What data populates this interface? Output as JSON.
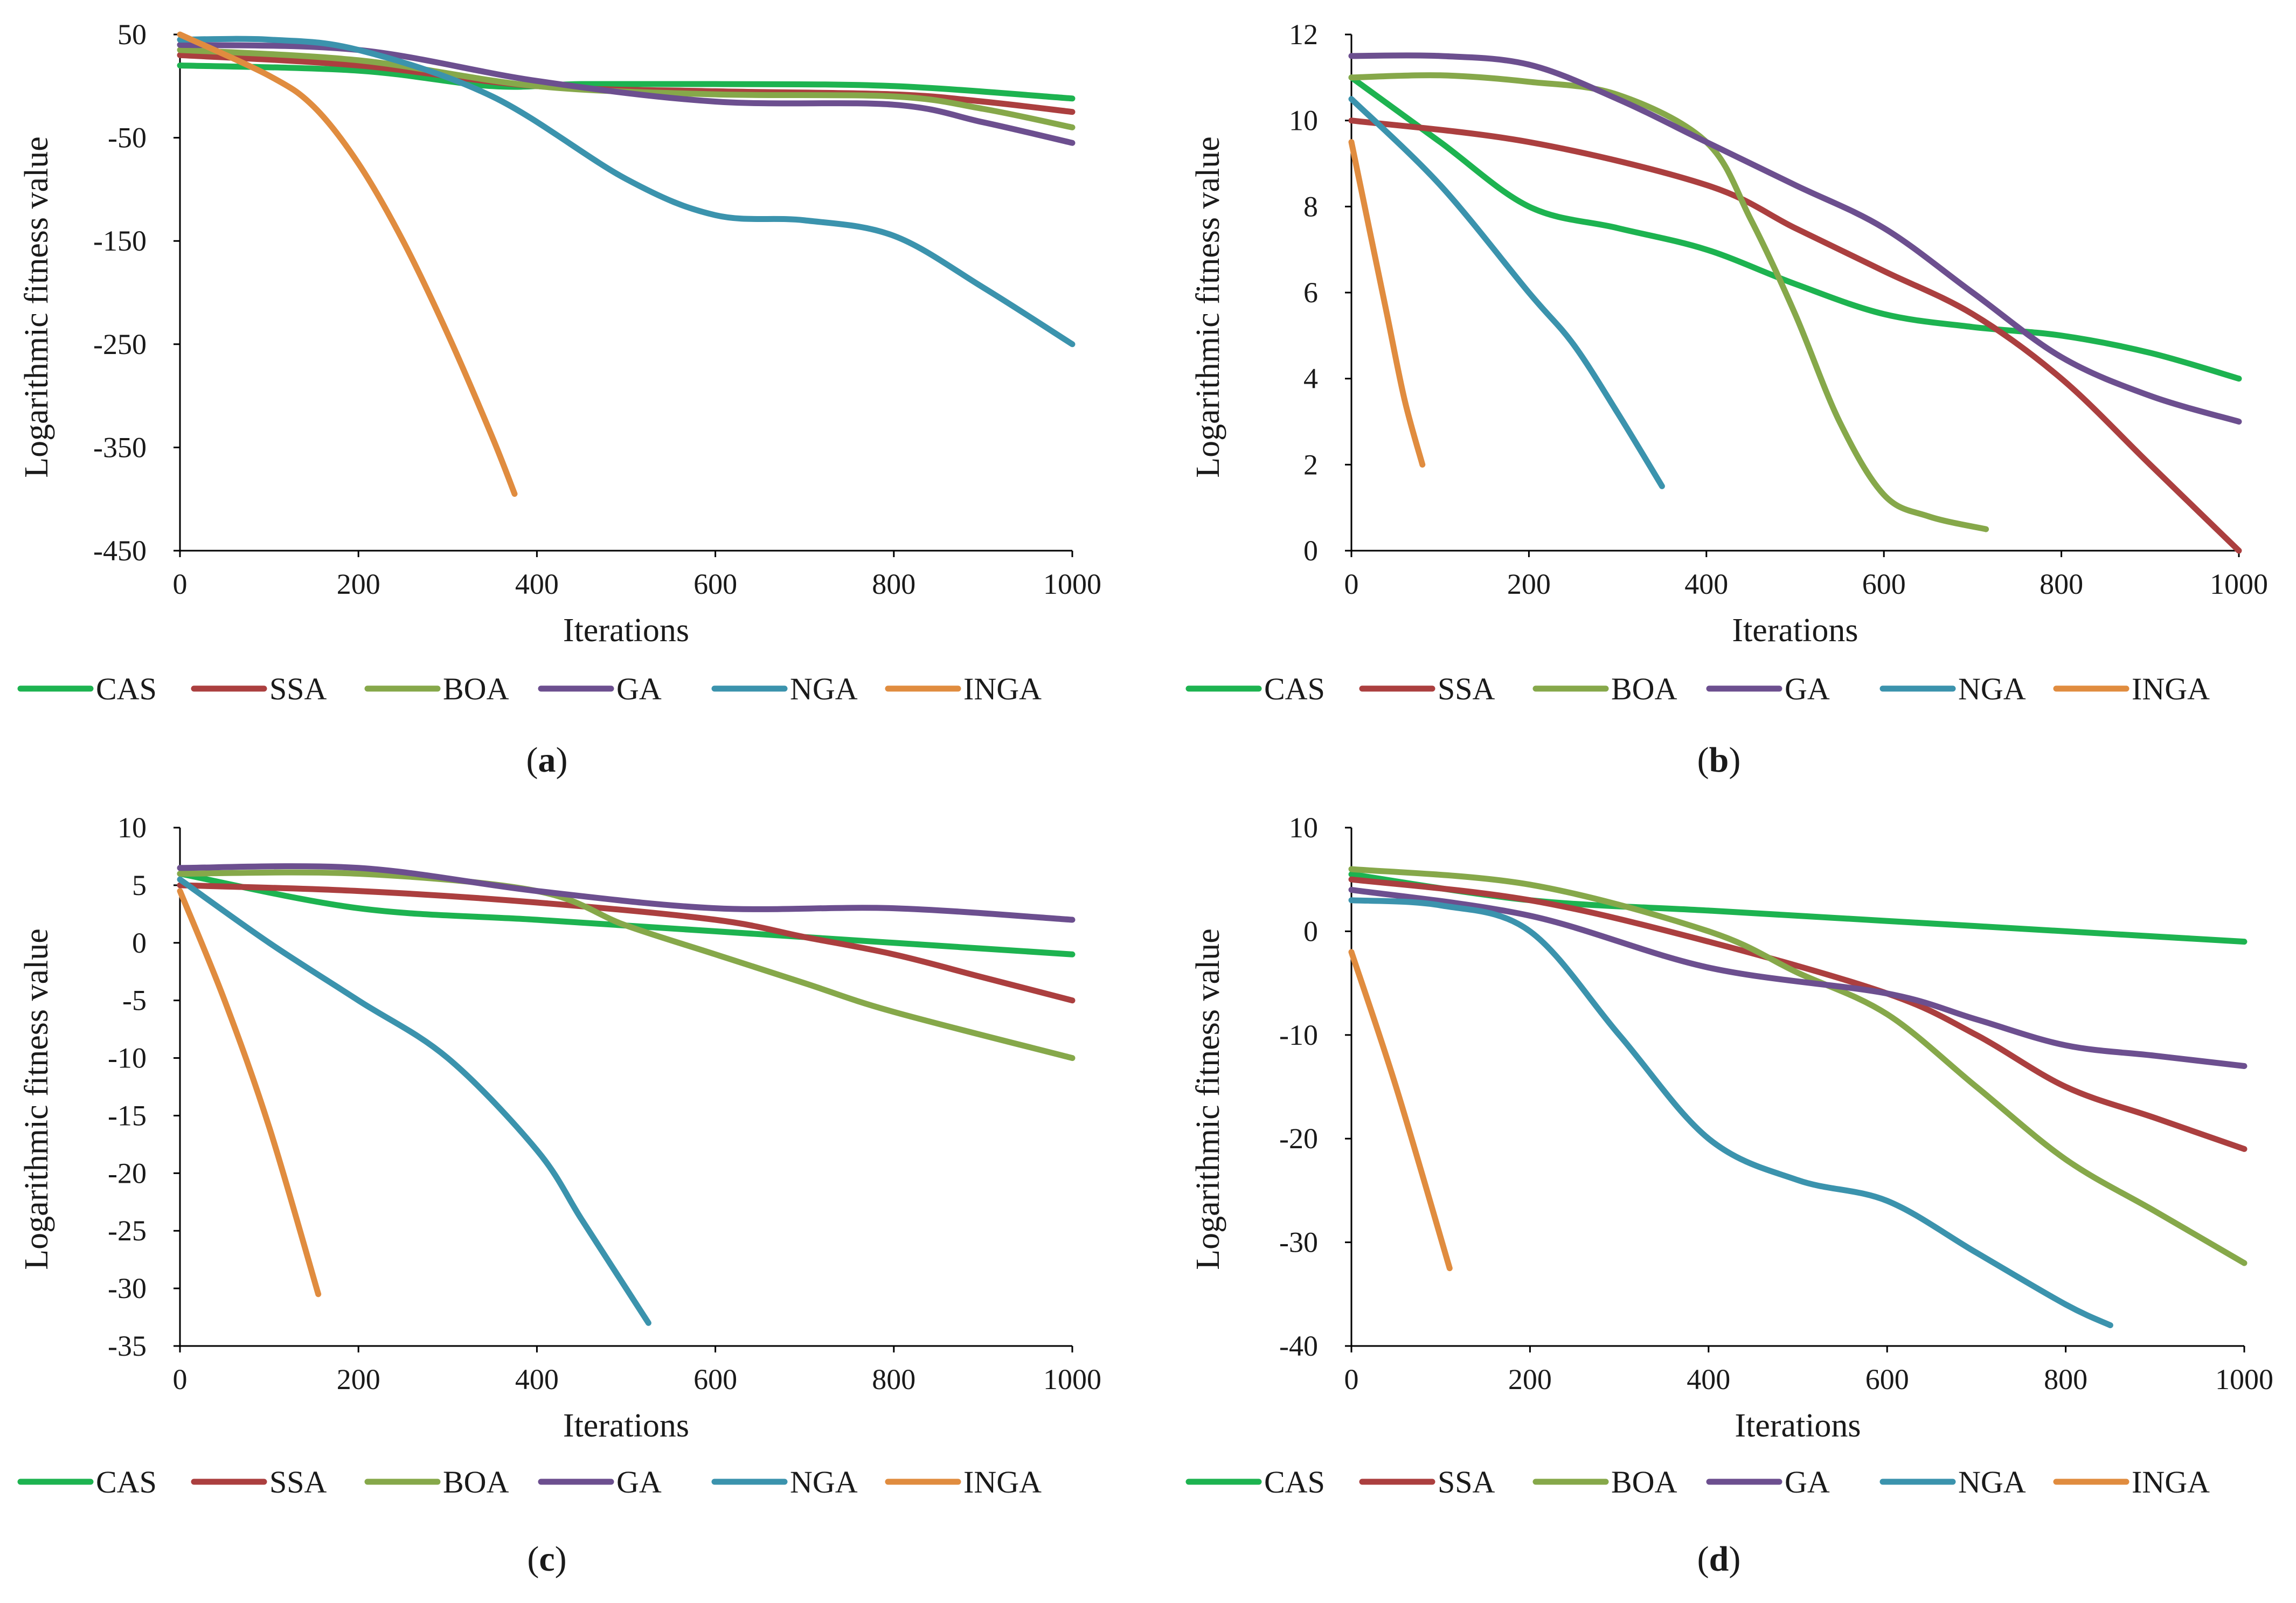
{
  "colors": {
    "CAS": "#1db350",
    "SSA": "#ab3f3f",
    "BOA": "#86a84a",
    "GA": "#6c4f8f",
    "NGA": "#3b93ad",
    "INGA": "#e08c3f"
  },
  "chart_data": [
    {
      "type": "line",
      "caption_letter": "a",
      "xlabel": "Iterations",
      "ylabel": "Logarithmic fitness value",
      "xlim": [
        0,
        1000
      ],
      "ylim": [
        -450,
        50
      ],
      "xticks": [
        0,
        200,
        400,
        600,
        800,
        1000
      ],
      "yticks": [
        50,
        -50,
        -150,
        -250,
        -350,
        -450
      ],
      "legend": [
        "CAS",
        "SSA",
        "BOA",
        "GA",
        "NGA",
        "INGA"
      ],
      "series": [
        {
          "name": "CAS",
          "x": [
            0,
            200,
            350,
            450,
            600,
            800,
            1000
          ],
          "y": [
            20,
            15,
            0,
            2,
            2,
            0,
            -12
          ]
        },
        {
          "name": "SSA",
          "x": [
            0,
            200,
            400,
            600,
            800,
            900,
            1000
          ],
          "y": [
            30,
            20,
            0,
            -5,
            -8,
            -15,
            -25
          ]
        },
        {
          "name": "BOA",
          "x": [
            0,
            200,
            400,
            600,
            800,
            900,
            1000
          ],
          "y": [
            35,
            25,
            0,
            -8,
            -10,
            -22,
            -40
          ]
        },
        {
          "name": "GA",
          "x": [
            0,
            200,
            400,
            600,
            800,
            900,
            1000
          ],
          "y": [
            40,
            35,
            5,
            -15,
            -18,
            -35,
            -55
          ]
        },
        {
          "name": "NGA",
          "x": [
            0,
            100,
            200,
            350,
            500,
            600,
            700,
            800,
            900,
            1000
          ],
          "y": [
            45,
            45,
            35,
            -10,
            -90,
            -125,
            -130,
            -145,
            -195,
            -250
          ]
        },
        {
          "name": "INGA",
          "x": [
            0,
            100,
            150,
            200,
            250,
            300,
            350,
            375
          ],
          "y": [
            50,
            10,
            -20,
            -75,
            -150,
            -240,
            -340,
            -395
          ]
        }
      ]
    },
    {
      "type": "line",
      "caption_letter": "b",
      "xlabel": "Iterations",
      "ylabel": "Logarithmic fitness value",
      "xlim": [
        0,
        1000
      ],
      "ylim": [
        0,
        12
      ],
      "xticks": [
        0,
        200,
        400,
        600,
        800,
        1000
      ],
      "yticks": [
        12,
        10,
        8,
        6,
        4,
        2,
        0
      ],
      "legend": [
        "CAS",
        "SSA",
        "BOA",
        "GA",
        "NGA",
        "INGA"
      ],
      "series": [
        {
          "name": "CAS",
          "x": [
            0,
            100,
            200,
            300,
            400,
            500,
            600,
            700,
            800,
            900,
            1000
          ],
          "y": [
            11,
            9.5,
            8,
            7.5,
            7,
            6.2,
            5.5,
            5.2,
            5,
            4.6,
            4
          ]
        },
        {
          "name": "SSA",
          "x": [
            0,
            200,
            400,
            500,
            600,
            700,
            800,
            900,
            1000
          ],
          "y": [
            10,
            9.5,
            8.5,
            7.5,
            6.5,
            5.5,
            4,
            2,
            0
          ]
        },
        {
          "name": "BOA",
          "x": [
            0,
            100,
            200,
            300,
            400,
            450,
            500,
            550,
            600,
            650,
            715
          ],
          "y": [
            11,
            11.05,
            10.9,
            10.6,
            9.5,
            7.7,
            5.5,
            3,
            1.3,
            0.8,
            0.5
          ]
        },
        {
          "name": "GA",
          "x": [
            0,
            100,
            200,
            300,
            400,
            500,
            600,
            700,
            800,
            900,
            1000
          ],
          "y": [
            11.5,
            11.5,
            11.3,
            10.5,
            9.5,
            8.5,
            7.5,
            6,
            4.5,
            3.6,
            3
          ]
        },
        {
          "name": "NGA",
          "x": [
            0,
            100,
            200,
            250,
            300,
            350
          ],
          "y": [
            10.5,
            8.5,
            6,
            4.8,
            3.2,
            1.5
          ]
        },
        {
          "name": "INGA",
          "x": [
            0,
            20,
            40,
            60,
            80
          ],
          "y": [
            9.5,
            7.5,
            5.5,
            3.5,
            2
          ]
        }
      ]
    },
    {
      "type": "line",
      "caption_letter": "c",
      "xlabel": "Iterations",
      "ylabel": "Logarithmic fitness value",
      "xlim": [
        0,
        1000
      ],
      "ylim": [
        -35,
        10
      ],
      "xticks": [
        0,
        200,
        400,
        600,
        800,
        1000
      ],
      "yticks": [
        10,
        5,
        0,
        -5,
        -10,
        -15,
        -20,
        -25,
        -30,
        -35
      ],
      "legend": [
        "CAS",
        "SSA",
        "BOA",
        "GA",
        "NGA",
        "INGA"
      ],
      "series": [
        {
          "name": "CAS",
          "x": [
            0,
            200,
            400,
            600,
            800,
            1000
          ],
          "y": [
            6,
            3,
            2,
            1,
            0,
            -1
          ]
        },
        {
          "name": "SSA",
          "x": [
            0,
            200,
            400,
            600,
            700,
            800,
            900,
            1000
          ],
          "y": [
            5,
            4.5,
            3.5,
            2,
            0.5,
            -1,
            -3,
            -5
          ]
        },
        {
          "name": "BOA",
          "x": [
            0,
            200,
            400,
            500,
            600,
            700,
            800,
            1000
          ],
          "y": [
            6,
            6,
            4.5,
            1.5,
            -1,
            -3.5,
            -6,
            -10
          ]
        },
        {
          "name": "GA",
          "x": [
            0,
            200,
            400,
            600,
            800,
            1000
          ],
          "y": [
            6.5,
            6.5,
            4.5,
            3,
            3,
            2
          ]
        },
        {
          "name": "NGA",
          "x": [
            0,
            100,
            200,
            300,
            400,
            450,
            500,
            525
          ],
          "y": [
            5.5,
            0,
            -5,
            -10,
            -18,
            -24,
            -30,
            -33
          ]
        },
        {
          "name": "INGA",
          "x": [
            0,
            50,
            100,
            155
          ],
          "y": [
            4.5,
            -5,
            -16,
            -30.5
          ]
        }
      ]
    },
    {
      "type": "line",
      "caption_letter": "d",
      "xlabel": "Iterations",
      "ylabel": "Logarithmic fitness value",
      "xlim": [
        0,
        1000
      ],
      "ylim": [
        -40,
        10
      ],
      "xticks": [
        0,
        200,
        400,
        600,
        800,
        1000
      ],
      "yticks": [
        10,
        0,
        -10,
        -20,
        -30,
        -40
      ],
      "legend": [
        "CAS",
        "SSA",
        "BOA",
        "GA",
        "NGA",
        "INGA"
      ],
      "series": [
        {
          "name": "CAS",
          "x": [
            0,
            200,
            400,
            600,
            800,
            1000
          ],
          "y": [
            5.5,
            3,
            2,
            1,
            0,
            -1
          ]
        },
        {
          "name": "SSA",
          "x": [
            0,
            200,
            400,
            600,
            700,
            800,
            900,
            1000
          ],
          "y": [
            5,
            3,
            -1,
            -6,
            -10,
            -15,
            -18,
            -21
          ]
        },
        {
          "name": "BOA",
          "x": [
            0,
            200,
            400,
            500,
            600,
            700,
            800,
            900,
            1000
          ],
          "y": [
            6,
            4.5,
            0,
            -4,
            -8,
            -15,
            -22,
            -27,
            -32
          ]
        },
        {
          "name": "GA",
          "x": [
            0,
            200,
            400,
            600,
            700,
            800,
            900,
            1000
          ],
          "y": [
            4,
            1.5,
            -3.5,
            -6,
            -8.5,
            -11,
            -12,
            -13
          ]
        },
        {
          "name": "NGA",
          "x": [
            0,
            100,
            200,
            300,
            400,
            500,
            600,
            700,
            800,
            850
          ],
          "y": [
            3,
            2.5,
            0,
            -10,
            -20,
            -24,
            -26,
            -31,
            -36,
            -38
          ]
        },
        {
          "name": "INGA",
          "x": [
            0,
            50,
            110
          ],
          "y": [
            -2,
            -15,
            -32.5
          ]
        }
      ]
    }
  ]
}
